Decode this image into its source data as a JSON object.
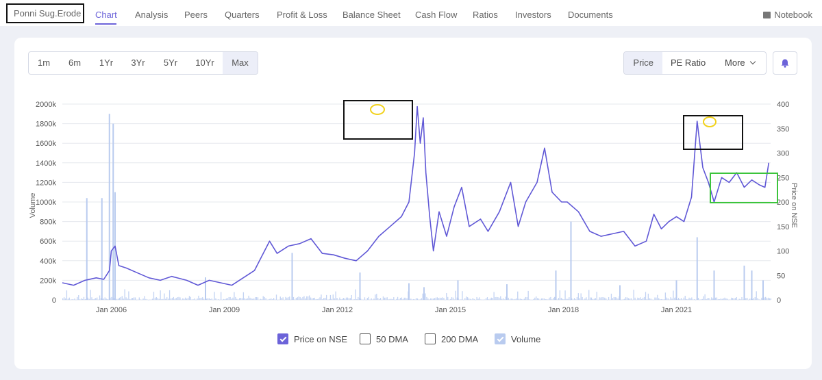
{
  "company": "Ponni Sug.Erode",
  "nav": {
    "tabs": [
      "Chart",
      "Analysis",
      "Peers",
      "Quarters",
      "Profit & Loss",
      "Balance Sheet",
      "Cash Flow",
      "Ratios",
      "Investors",
      "Documents"
    ],
    "active": "Chart",
    "notebook": "Notebook"
  },
  "ranges": [
    "1m",
    "6m",
    "1Yr",
    "3Yr",
    "5Yr",
    "10Yr",
    "Max"
  ],
  "active_range": "Max",
  "metrics": {
    "price": "Price",
    "pe": "PE Ratio",
    "more": "More"
  },
  "active_metric": "Price",
  "legend": {
    "price": "Price on NSE",
    "dma50": "50 DMA",
    "dma200": "200 DMA",
    "volume": "Volume"
  },
  "colors": {
    "accent": "#6c63d9",
    "price_line": "#6058d6",
    "volume_bar": "#b9cbef",
    "annotation_black": "#111111",
    "annotation_yellow": "#f2d21b",
    "annotation_green": "#3cc43c"
  },
  "chart_data": {
    "type": "line",
    "y_left_label": "Volume",
    "y_right_label": "Price on NSE",
    "y_left_ticks": [
      "0",
      "200k",
      "400k",
      "600k",
      "800k",
      "1000k",
      "1200k",
      "1400k",
      "1600k",
      "1800k",
      "2000k"
    ],
    "y_left_range": [
      0,
      2000000
    ],
    "y_right_ticks": [
      "0",
      "50",
      "100",
      "150",
      "200",
      "250",
      "300",
      "350",
      "400"
    ],
    "y_right_range": [
      0,
      400
    ],
    "x_ticks": [
      "Jan 2006",
      "Jan 2009",
      "Jan 2012",
      "Jan 2015",
      "Jan 2018",
      "Jan 2021"
    ],
    "x_tick_years": [
      2006,
      2009,
      2012,
      2015,
      2018,
      2021
    ],
    "x_range": [
      2004.7,
      2023.5
    ],
    "price_series": {
      "name": "Price on NSE",
      "points": [
        [
          2004.7,
          35
        ],
        [
          2005.0,
          30
        ],
        [
          2005.3,
          40
        ],
        [
          2005.6,
          45
        ],
        [
          2005.8,
          42
        ],
        [
          2005.95,
          60
        ],
        [
          2006.0,
          100
        ],
        [
          2006.1,
          110
        ],
        [
          2006.2,
          70
        ],
        [
          2006.4,
          65
        ],
        [
          2006.7,
          55
        ],
        [
          2007.0,
          45
        ],
        [
          2007.3,
          40
        ],
        [
          2007.6,
          48
        ],
        [
          2008.0,
          40
        ],
        [
          2008.3,
          30
        ],
        [
          2008.6,
          40
        ],
        [
          2008.9,
          35
        ],
        [
          2009.2,
          30
        ],
        [
          2009.5,
          45
        ],
        [
          2009.8,
          60
        ],
        [
          2010.0,
          90
        ],
        [
          2010.2,
          120
        ],
        [
          2010.4,
          95
        ],
        [
          2010.7,
          110
        ],
        [
          2011.0,
          115
        ],
        [
          2011.3,
          125
        ],
        [
          2011.6,
          95
        ],
        [
          2011.9,
          92
        ],
        [
          2012.2,
          85
        ],
        [
          2012.5,
          80
        ],
        [
          2012.8,
          100
        ],
        [
          2013.1,
          130
        ],
        [
          2013.4,
          150
        ],
        [
          2013.7,
          170
        ],
        [
          2013.9,
          200
        ],
        [
          2014.05,
          300
        ],
        [
          2014.12,
          395
        ],
        [
          2014.2,
          320
        ],
        [
          2014.28,
          372
        ],
        [
          2014.35,
          260
        ],
        [
          2014.45,
          170
        ],
        [
          2014.55,
          100
        ],
        [
          2014.7,
          180
        ],
        [
          2014.9,
          130
        ],
        [
          2015.1,
          190
        ],
        [
          2015.3,
          230
        ],
        [
          2015.5,
          150
        ],
        [
          2015.8,
          165
        ],
        [
          2016.0,
          140
        ],
        [
          2016.3,
          180
        ],
        [
          2016.6,
          240
        ],
        [
          2016.8,
          150
        ],
        [
          2017.0,
          200
        ],
        [
          2017.3,
          240
        ],
        [
          2017.5,
          310
        ],
        [
          2017.7,
          220
        ],
        [
          2017.95,
          200
        ],
        [
          2018.1,
          200
        ],
        [
          2018.4,
          180
        ],
        [
          2018.7,
          140
        ],
        [
          2019.0,
          130
        ],
        [
          2019.3,
          135
        ],
        [
          2019.6,
          140
        ],
        [
          2019.9,
          110
        ],
        [
          2020.2,
          120
        ],
        [
          2020.4,
          175
        ],
        [
          2020.6,
          145
        ],
        [
          2020.8,
          160
        ],
        [
          2021.0,
          170
        ],
        [
          2021.2,
          160
        ],
        [
          2021.4,
          210
        ],
        [
          2021.55,
          365
        ],
        [
          2021.7,
          270
        ],
        [
          2021.85,
          240
        ],
        [
          2022.0,
          200
        ],
        [
          2022.2,
          250
        ],
        [
          2022.4,
          240
        ],
        [
          2022.6,
          260
        ],
        [
          2022.8,
          230
        ],
        [
          2023.0,
          245
        ],
        [
          2023.2,
          235
        ],
        [
          2023.35,
          230
        ],
        [
          2023.45,
          280
        ]
      ]
    },
    "volume_spikes": [
      [
        2005.35,
        1040000
      ],
      [
        2005.75,
        1040000
      ],
      [
        2005.95,
        1900000
      ],
      [
        2006.05,
        1800000
      ],
      [
        2006.1,
        1100000
      ],
      [
        2008.5,
        230000
      ],
      [
        2010.8,
        480000
      ],
      [
        2012.6,
        280000
      ],
      [
        2013.9,
        170000
      ],
      [
        2014.3,
        130000
      ],
      [
        2015.2,
        200000
      ],
      [
        2016.5,
        160000
      ],
      [
        2017.8,
        300000
      ],
      [
        2018.2,
        800000
      ],
      [
        2019.5,
        150000
      ],
      [
        2021.0,
        200000
      ],
      [
        2021.55,
        640000
      ],
      [
        2022.0,
        300000
      ],
      [
        2022.8,
        350000
      ],
      [
        2023.0,
        300000
      ],
      [
        2023.3,
        200000
      ]
    ]
  }
}
